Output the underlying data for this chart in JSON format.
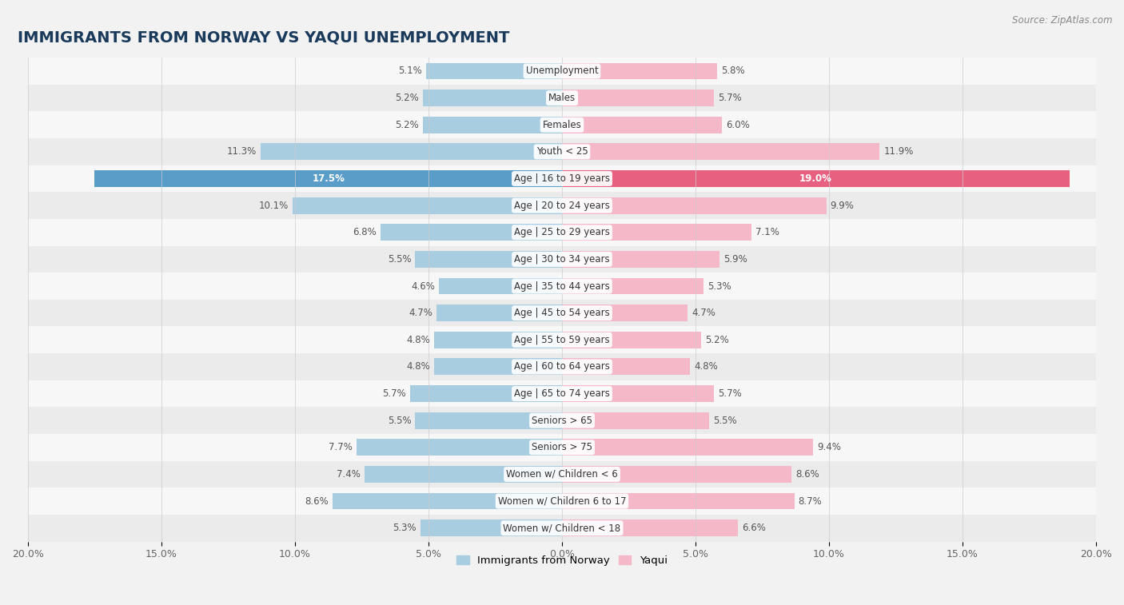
{
  "title": "IMMIGRANTS FROM NORWAY VS YAQUI UNEMPLOYMENT",
  "source": "Source: ZipAtlas.com",
  "categories": [
    "Unemployment",
    "Males",
    "Females",
    "Youth < 25",
    "Age | 16 to 19 years",
    "Age | 20 to 24 years",
    "Age | 25 to 29 years",
    "Age | 30 to 34 years",
    "Age | 35 to 44 years",
    "Age | 45 to 54 years",
    "Age | 55 to 59 years",
    "Age | 60 to 64 years",
    "Age | 65 to 74 years",
    "Seniors > 65",
    "Seniors > 75",
    "Women w/ Children < 6",
    "Women w/ Children 6 to 17",
    "Women w/ Children < 18"
  ],
  "norway_values": [
    5.1,
    5.2,
    5.2,
    11.3,
    17.5,
    10.1,
    6.8,
    5.5,
    4.6,
    4.7,
    4.8,
    4.8,
    5.7,
    5.5,
    7.7,
    7.4,
    8.6,
    5.3
  ],
  "yaqui_values": [
    5.8,
    5.7,
    6.0,
    11.9,
    19.0,
    9.9,
    7.1,
    5.9,
    5.3,
    4.7,
    5.2,
    4.8,
    5.7,
    5.5,
    9.4,
    8.6,
    8.7,
    6.6
  ],
  "norway_color": "#a8cce0",
  "yaqui_color": "#f4b8c8",
  "norway_highlight_color": "#5b9dc9",
  "yaqui_highlight_color": "#e86080",
  "highlight_row": 4,
  "background_color": "#f2f2f2",
  "row_bg_light": "#f7f7f7",
  "row_bg_dark": "#ebebeb",
  "xlim": 20.0,
  "legend_norway": "Immigrants from Norway",
  "legend_yaqui": "Yaqui",
  "title_fontsize": 14,
  "label_fontsize": 8.5,
  "value_fontsize": 8.5,
  "axis_label_fontsize": 9.0
}
